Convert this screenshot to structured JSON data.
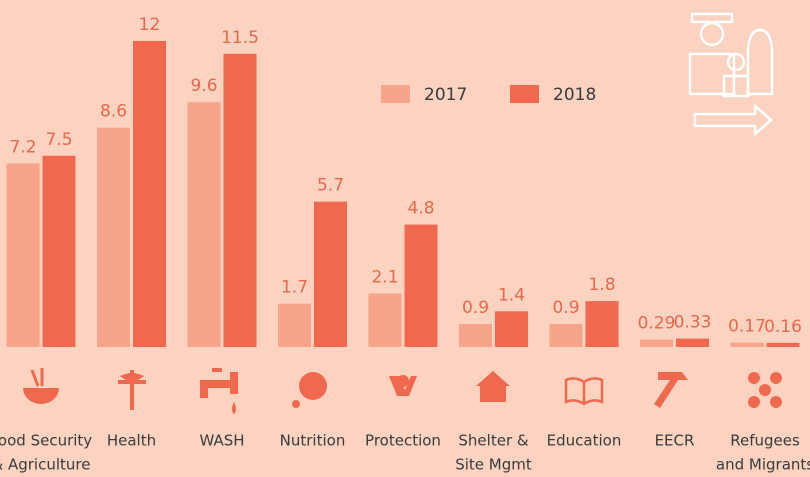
{
  "chart_data": {
    "type": "bar",
    "categories": [
      [
        "Food Security",
        "& Agriculture"
      ],
      [
        "Health"
      ],
      [
        "WASH"
      ],
      [
        "Nutrition"
      ],
      [
        "Protection"
      ],
      [
        "Shelter &",
        "Site Mgmt"
      ],
      [
        "Education"
      ],
      [
        "EECR"
      ],
      [
        "Refugees",
        "and Migrants"
      ]
    ],
    "series": [
      {
        "name": "2017",
        "color": "#f6a58b",
        "values": [
          7.2,
          8.6,
          9.6,
          1.7,
          2.1,
          0.9,
          0.9,
          0.29,
          0.17
        ]
      },
      {
        "name": "2018",
        "color": "#f0694f",
        "values": [
          7.5,
          12,
          11.5,
          5.7,
          4.8,
          1.4,
          1.8,
          0.33,
          0.16
        ]
      }
    ],
    "ylim": [
      0,
      12
    ]
  }
}
